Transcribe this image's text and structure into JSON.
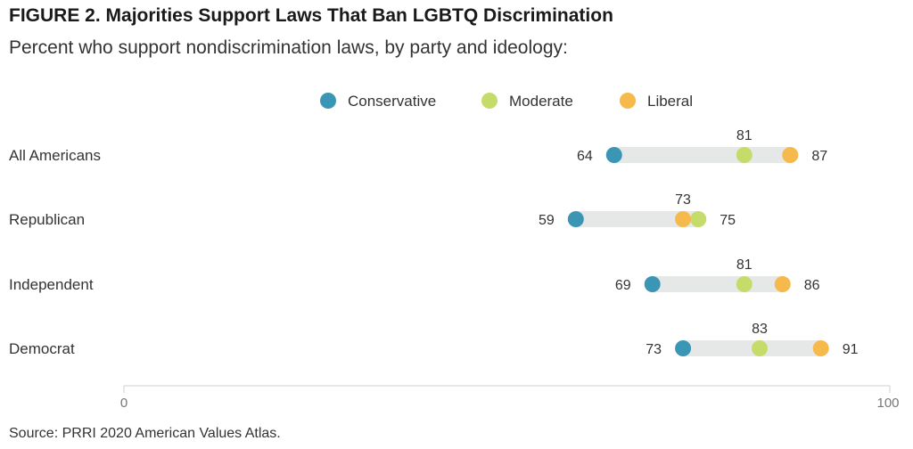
{
  "header": {
    "title": "FIGURE 2.  Majorities Support Laws That Ban LGBTQ Discrimination",
    "subtitle": "Percent who support nondiscrimination laws, by party and ideology:"
  },
  "footer": {
    "source": "Source: PRRI 2020 American Values Atlas."
  },
  "colors": {
    "conservative": "#3a96b4",
    "moderate": "#c5dc6a",
    "liberal": "#f5b94c",
    "track": "#e6e8e8",
    "axis": "#cfcfcf"
  },
  "chart_data": {
    "type": "dot",
    "title": "FIGURE 2.  Majorities Support Laws That Ban LGBTQ Discrimination",
    "subtitle": "Percent who support nondiscrimination laws, by party and ideology:",
    "xlim": [
      0,
      100
    ],
    "x_ticks": [
      "0",
      "100"
    ],
    "legend_position": "top",
    "series": [
      {
        "name": "Conservative",
        "key": "conservative"
      },
      {
        "name": "Moderate",
        "key": "moderate"
      },
      {
        "name": "Liberal",
        "key": "liberal"
      }
    ],
    "categories": [
      "All Americans",
      "Republican",
      "Independent",
      "Democrat"
    ],
    "rows": [
      {
        "label": "All Americans",
        "conservative": 64,
        "moderate": 81,
        "liberal": 87
      },
      {
        "label": "Republican",
        "conservative": 59,
        "moderate": 75,
        "liberal": 73
      },
      {
        "label": "Independent",
        "conservative": 69,
        "moderate": 81,
        "liberal": 86
      },
      {
        "label": "Democrat",
        "conservative": 73,
        "moderate": 83,
        "liberal": 91
      }
    ]
  }
}
